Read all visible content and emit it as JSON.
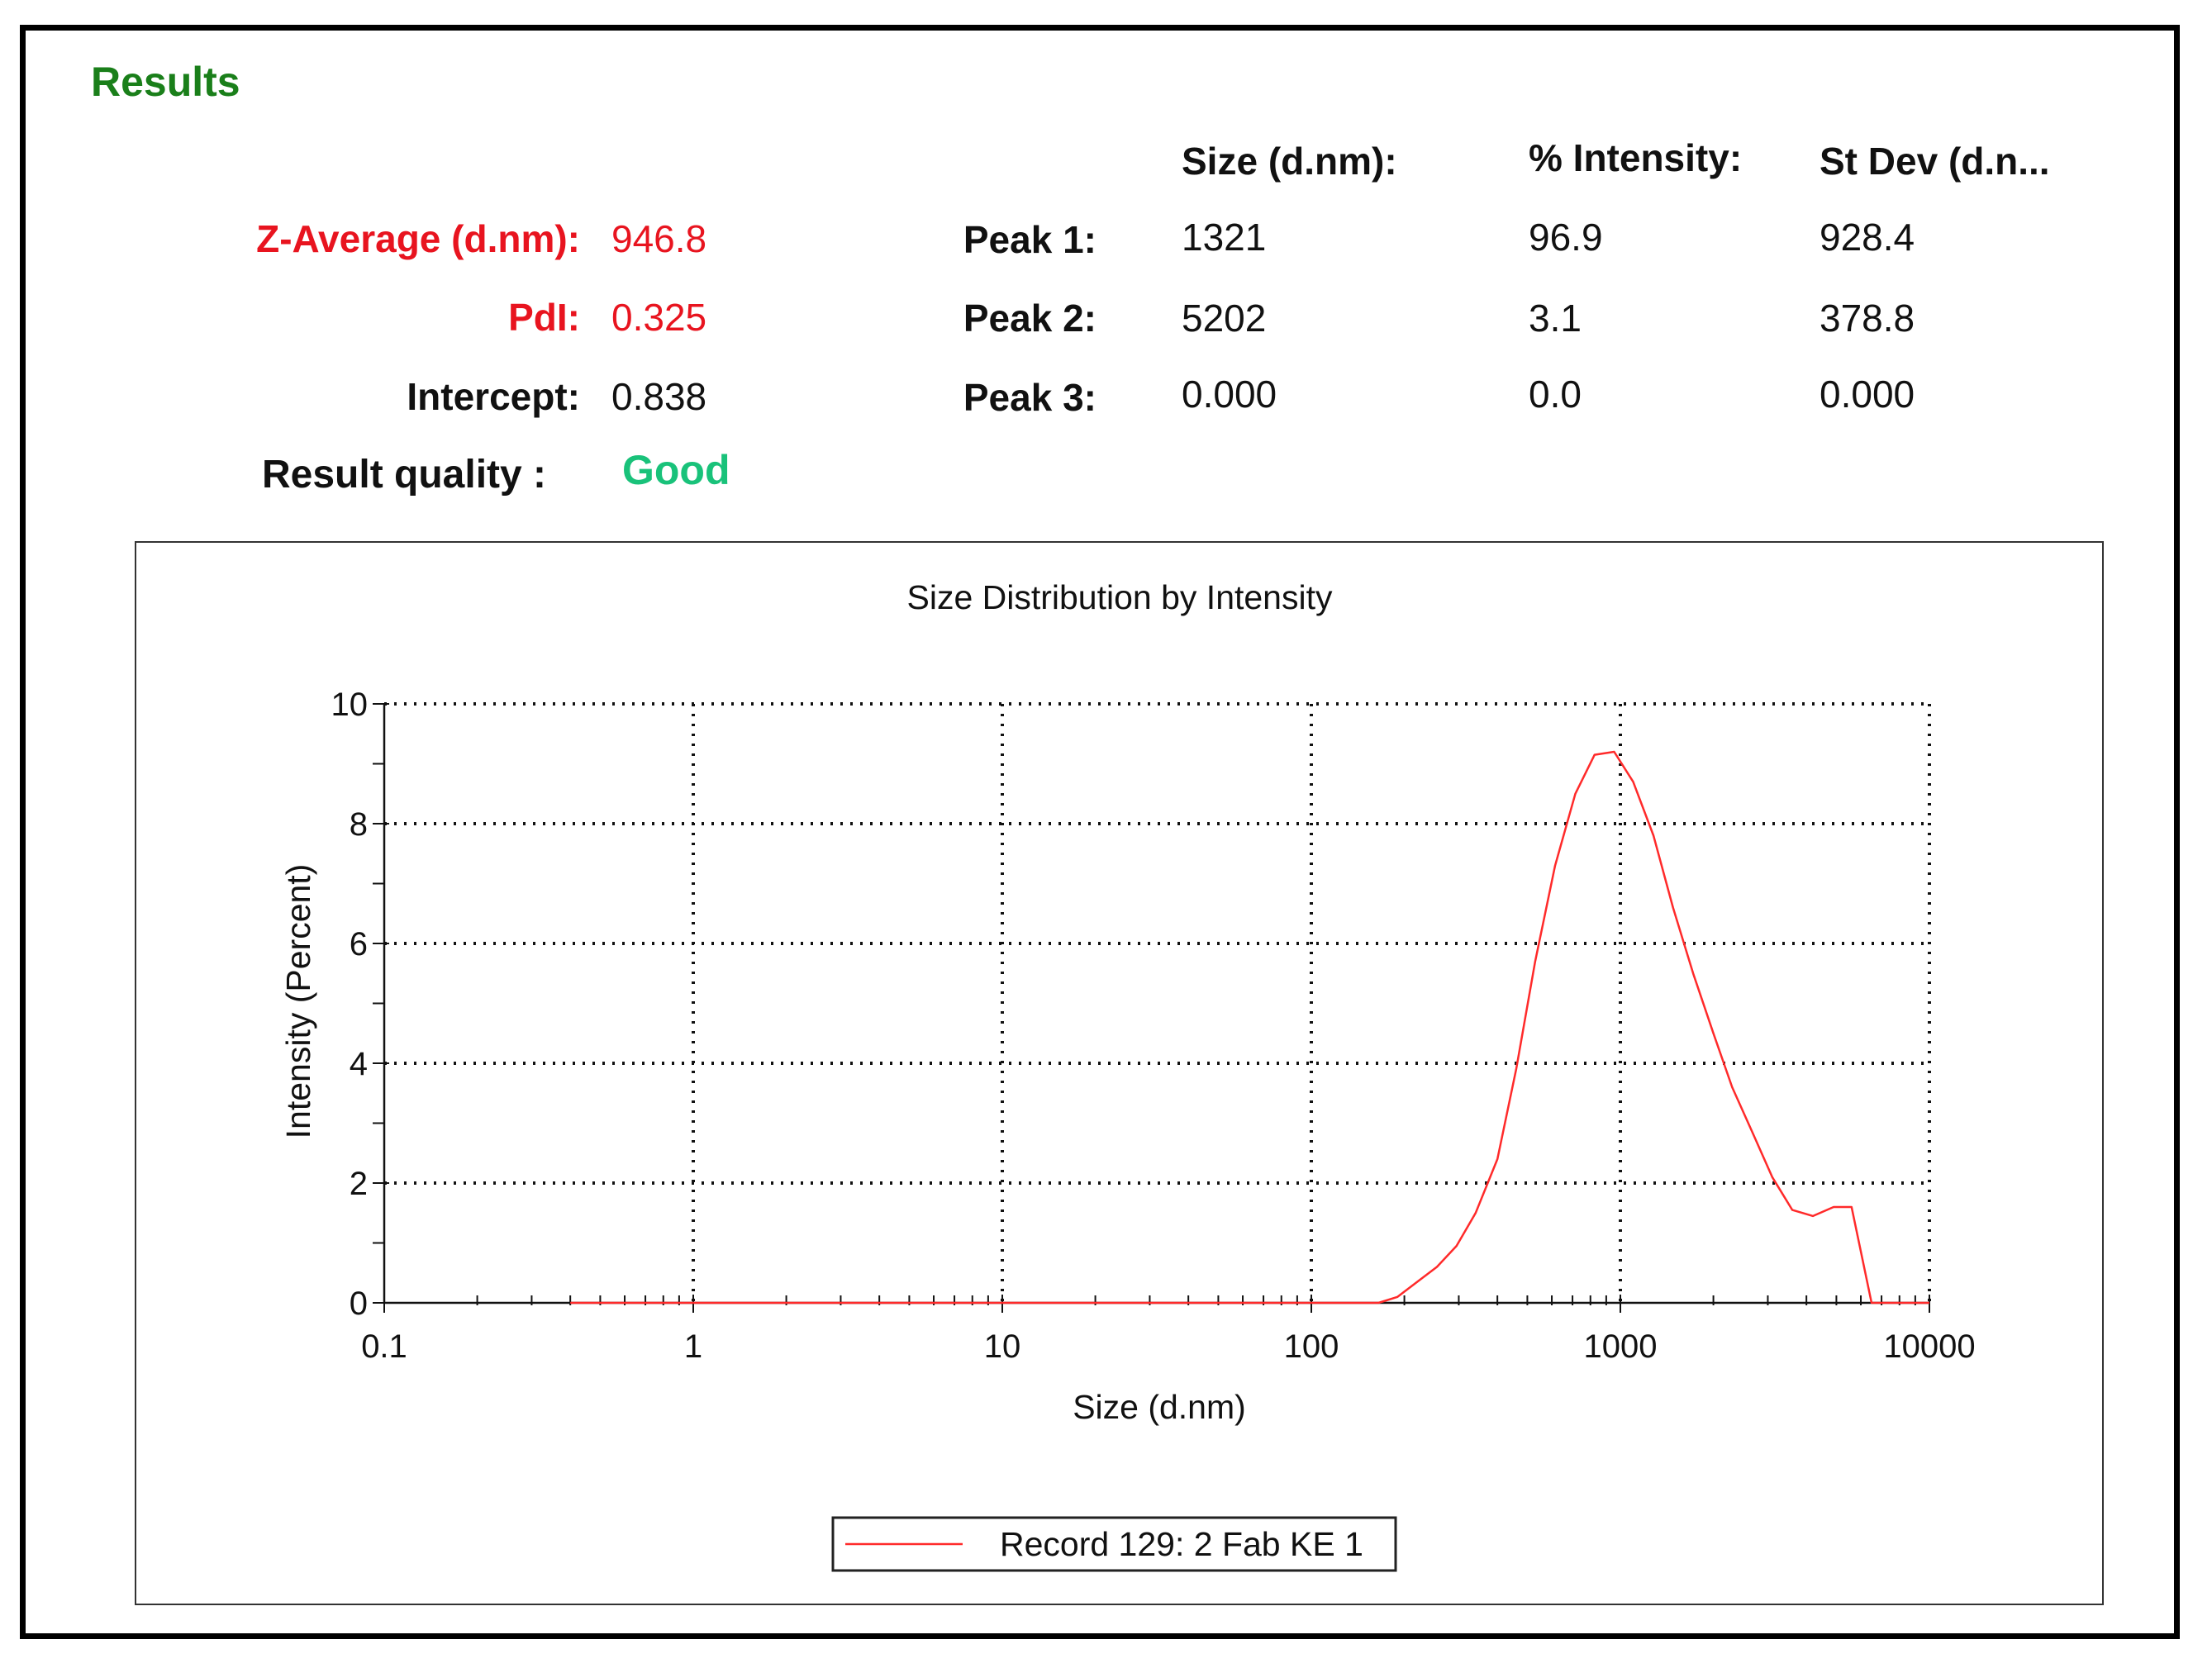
{
  "results": {
    "title": "Results",
    "z_average": {
      "label": "Z-Average (d.nm):",
      "value": "946.8"
    },
    "pdi": {
      "label": "PdI:",
      "value": "0.325"
    },
    "intercept": {
      "label": "Intercept:",
      "value": "0.838"
    },
    "quality": {
      "label": "Result quality :",
      "value": "Good"
    }
  },
  "peaks_table": {
    "headers": [
      "Size (d.nm):",
      "% Intensity:",
      "St Dev (d.n..."
    ],
    "rows": [
      {
        "label": "Peak 1:",
        "size": "1321",
        "intensity": "96.9",
        "stdev": "928.4"
      },
      {
        "label": "Peak 2:",
        "size": "5202",
        "intensity": "3.1",
        "stdev": "378.8"
      },
      {
        "label": "Peak 3:",
        "size": "0.000",
        "intensity": "0.0",
        "stdev": "0.000"
      }
    ]
  },
  "colors": {
    "title_green": "#1a7f1a",
    "highlight_red": "#e8141f",
    "good_green": "#19c27a",
    "series": "#ff2a2a"
  },
  "chart_data": {
    "type": "line",
    "title": "Size Distribution by Intensity",
    "xlabel": "Size (d.nm)",
    "ylabel": "Intensity (Percent)",
    "xscale": "log",
    "xlim": [
      0.1,
      10000
    ],
    "ylim": [
      0,
      10
    ],
    "x_ticks": [
      "0.1",
      "1",
      "10",
      "100",
      "1000",
      "10000"
    ],
    "y_ticks": [
      "0",
      "2",
      "4",
      "6",
      "8",
      "10"
    ],
    "grid": true,
    "legend_position": "bottom-center",
    "series": [
      {
        "name": "Record 129: 2 Fab KE 1",
        "x": [
          0.4,
          1,
          10,
          100,
          165,
          190,
          220,
          255,
          295,
          340,
          400,
          460,
          530,
          615,
          715,
          825,
          955,
          1100,
          1280,
          1480,
          1720,
          2000,
          2300,
          2700,
          3100,
          3600,
          4200,
          4900,
          5600,
          6500,
          7500,
          8500,
          10000
        ],
        "y": [
          0,
          0,
          0,
          0,
          0,
          0.1,
          0.35,
          0.6,
          0.95,
          1.5,
          2.4,
          3.9,
          5.7,
          7.3,
          8.5,
          9.15,
          9.2,
          8.7,
          7.8,
          6.6,
          5.5,
          4.5,
          3.6,
          2.8,
          2.1,
          1.55,
          1.45,
          1.6,
          1.6,
          0,
          0,
          0,
          0
        ]
      }
    ]
  }
}
